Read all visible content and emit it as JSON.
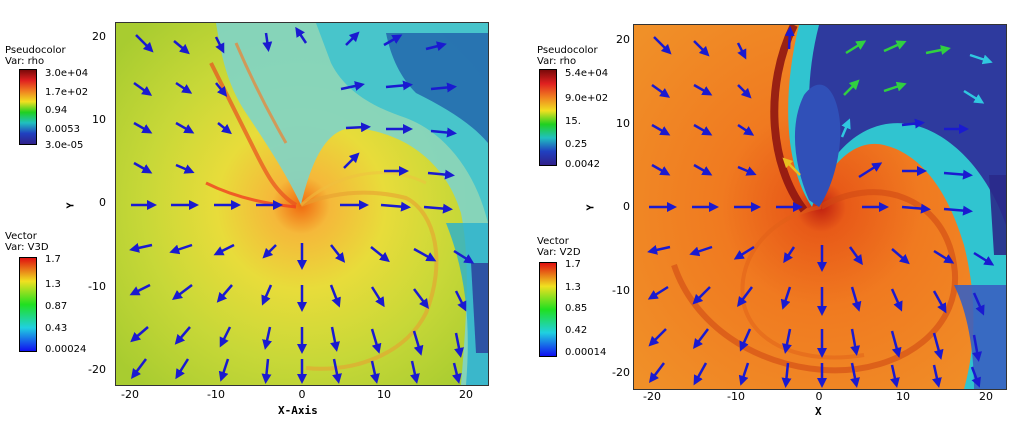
{
  "left_panel": {
    "pseudocolor": {
      "title": "Pseudocolor",
      "var": "Var: rho",
      "ticks": [
        "3.0e+04",
        "1.7e+02",
        "0.94",
        "0.0053",
        "3.0e-05"
      ]
    },
    "vector": {
      "title": "Vector",
      "var": "Var: V3D",
      "ticks": [
        "1.7",
        "1.3",
        "0.87",
        "0.43",
        "0.00024"
      ]
    },
    "xlabel": "X-Axis",
    "ylabel": "Y",
    "xticks": [
      "-20",
      "-10",
      "0",
      "10",
      "20"
    ],
    "yticks": [
      "20",
      "10",
      "0",
      "-10",
      "-20"
    ]
  },
  "right_panel": {
    "pseudocolor": {
      "title": "Pseudocolor",
      "var": "Var: rho",
      "ticks": [
        "5.4e+04",
        "9.0e+02",
        "15.",
        "0.25",
        "0.0042"
      ]
    },
    "vector": {
      "title": "Vector",
      "var": "Var: V2D",
      "ticks": [
        "1.7",
        "1.3",
        "0.85",
        "0.42",
        "0.00014"
      ]
    },
    "xlabel": "X",
    "ylabel": "Y",
    "xticks": [
      "-20",
      "-10",
      "0",
      "10",
      "20"
    ],
    "yticks": [
      "20",
      "10",
      "0",
      "-10",
      "-20"
    ]
  },
  "colors": {
    "rho_colormap": [
      "#7a0a0a",
      "#e02020",
      "#f08020",
      "#f0e020",
      "#20d020",
      "#20c0c0",
      "#2040c0",
      "#30208a"
    ],
    "vector_colormap": [
      "#e01010",
      "#f0e020",
      "#20e020",
      "#20d0e0",
      "#1010f0"
    ],
    "arrow_default": "#1a1ad0"
  }
}
